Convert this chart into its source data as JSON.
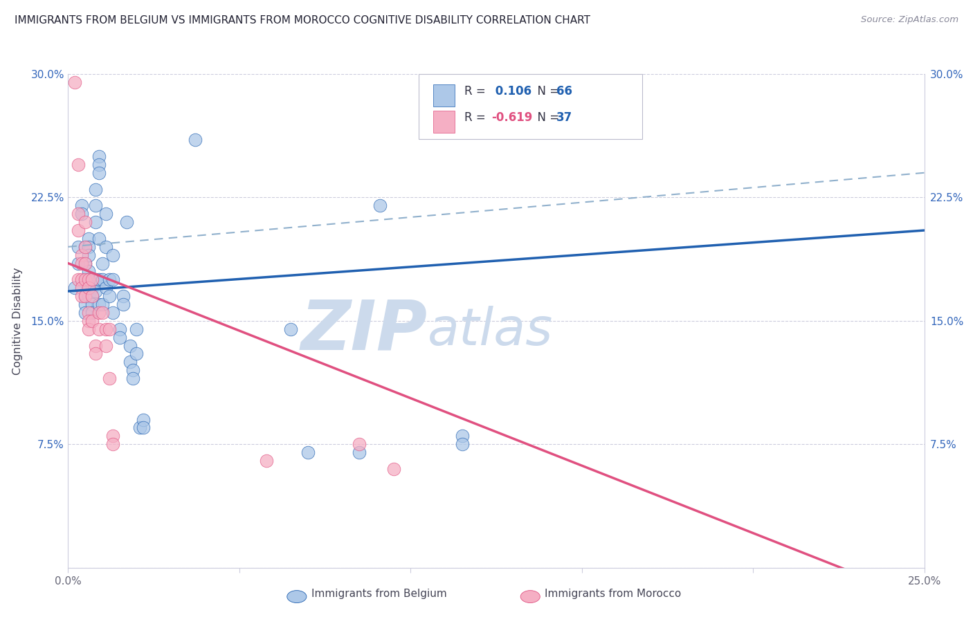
{
  "title": "IMMIGRANTS FROM BELGIUM VS IMMIGRANTS FROM MOROCCO COGNITIVE DISABILITY CORRELATION CHART",
  "source": "Source: ZipAtlas.com",
  "xlabel_Belgium": "Immigrants from Belgium",
  "xlabel_Morocco": "Immigrants from Morocco",
  "ylabel": "Cognitive Disability",
  "xlim": [
    0.0,
    0.25
  ],
  "ylim": [
    0.0,
    0.3
  ],
  "xticks": [
    0.0,
    0.05,
    0.1,
    0.15,
    0.2,
    0.25
  ],
  "yticks": [
    0.0,
    0.075,
    0.15,
    0.225,
    0.3
  ],
  "ytick_labels_left": [
    "",
    "7.5%",
    "15.0%",
    "22.5%",
    "30.0%"
  ],
  "ytick_labels_right": [
    "",
    "7.5%",
    "15.0%",
    "22.5%",
    "30.0%"
  ],
  "xtick_labels": [
    "0.0%",
    "",
    "",
    "",
    "",
    "25.0%"
  ],
  "R_belgium": 0.106,
  "N_belgium": 66,
  "R_morocco": -0.619,
  "N_morocco": 37,
  "color_belgium": "#adc8e8",
  "color_morocco": "#f5afc4",
  "line_color_belgium": "#2060b0",
  "line_color_morocco": "#e05080",
  "line_color_dashed": "#90b0cc",
  "watermark_color": "#ccdaec",
  "background_color": "#ffffff",
  "grid_color": "#ccccdd",
  "belgium_line": [
    0.0,
    0.168,
    0.25,
    0.205
  ],
  "morocco_line": [
    0.0,
    0.185,
    0.25,
    -0.02
  ],
  "dashed_line": [
    0.0,
    0.195,
    0.25,
    0.24
  ],
  "belgium_scatter": [
    [
      0.002,
      0.17
    ],
    [
      0.003,
      0.185
    ],
    [
      0.003,
      0.195
    ],
    [
      0.004,
      0.22
    ],
    [
      0.004,
      0.215
    ],
    [
      0.005,
      0.195
    ],
    [
      0.005,
      0.185
    ],
    [
      0.005,
      0.175
    ],
    [
      0.005,
      0.165
    ],
    [
      0.005,
      0.16
    ],
    [
      0.005,
      0.155
    ],
    [
      0.006,
      0.2
    ],
    [
      0.006,
      0.195
    ],
    [
      0.006,
      0.19
    ],
    [
      0.006,
      0.18
    ],
    [
      0.006,
      0.175
    ],
    [
      0.006,
      0.17
    ],
    [
      0.006,
      0.165
    ],
    [
      0.007,
      0.175
    ],
    [
      0.007,
      0.17
    ],
    [
      0.007,
      0.165
    ],
    [
      0.007,
      0.16
    ],
    [
      0.007,
      0.155
    ],
    [
      0.008,
      0.23
    ],
    [
      0.008,
      0.22
    ],
    [
      0.008,
      0.21
    ],
    [
      0.008,
      0.175
    ],
    [
      0.008,
      0.168
    ],
    [
      0.009,
      0.25
    ],
    [
      0.009,
      0.245
    ],
    [
      0.009,
      0.24
    ],
    [
      0.009,
      0.2
    ],
    [
      0.009,
      0.175
    ],
    [
      0.009,
      0.16
    ],
    [
      0.01,
      0.185
    ],
    [
      0.01,
      0.175
    ],
    [
      0.01,
      0.16
    ],
    [
      0.011,
      0.215
    ],
    [
      0.011,
      0.195
    ],
    [
      0.011,
      0.17
    ],
    [
      0.012,
      0.175
    ],
    [
      0.012,
      0.165
    ],
    [
      0.013,
      0.19
    ],
    [
      0.013,
      0.175
    ],
    [
      0.013,
      0.155
    ],
    [
      0.015,
      0.145
    ],
    [
      0.015,
      0.14
    ],
    [
      0.016,
      0.165
    ],
    [
      0.016,
      0.16
    ],
    [
      0.017,
      0.21
    ],
    [
      0.018,
      0.135
    ],
    [
      0.018,
      0.125
    ],
    [
      0.019,
      0.12
    ],
    [
      0.019,
      0.115
    ],
    [
      0.02,
      0.145
    ],
    [
      0.02,
      0.13
    ],
    [
      0.021,
      0.085
    ],
    [
      0.022,
      0.09
    ],
    [
      0.022,
      0.085
    ],
    [
      0.037,
      0.26
    ],
    [
      0.065,
      0.145
    ],
    [
      0.07,
      0.07
    ],
    [
      0.085,
      0.07
    ],
    [
      0.091,
      0.22
    ],
    [
      0.115,
      0.08
    ],
    [
      0.115,
      0.075
    ]
  ],
  "morocco_scatter": [
    [
      0.002,
      0.295
    ],
    [
      0.003,
      0.245
    ],
    [
      0.003,
      0.215
    ],
    [
      0.003,
      0.205
    ],
    [
      0.003,
      0.175
    ],
    [
      0.004,
      0.19
    ],
    [
      0.004,
      0.185
    ],
    [
      0.004,
      0.175
    ],
    [
      0.004,
      0.17
    ],
    [
      0.004,
      0.165
    ],
    [
      0.005,
      0.21
    ],
    [
      0.005,
      0.195
    ],
    [
      0.005,
      0.185
    ],
    [
      0.005,
      0.175
    ],
    [
      0.005,
      0.165
    ],
    [
      0.006,
      0.175
    ],
    [
      0.006,
      0.17
    ],
    [
      0.006,
      0.155
    ],
    [
      0.006,
      0.15
    ],
    [
      0.006,
      0.145
    ],
    [
      0.007,
      0.175
    ],
    [
      0.007,
      0.165
    ],
    [
      0.007,
      0.15
    ],
    [
      0.008,
      0.135
    ],
    [
      0.008,
      0.13
    ],
    [
      0.009,
      0.155
    ],
    [
      0.009,
      0.145
    ],
    [
      0.01,
      0.155
    ],
    [
      0.011,
      0.145
    ],
    [
      0.011,
      0.135
    ],
    [
      0.012,
      0.145
    ],
    [
      0.012,
      0.115
    ],
    [
      0.013,
      0.08
    ],
    [
      0.013,
      0.075
    ],
    [
      0.058,
      0.065
    ],
    [
      0.085,
      0.075
    ],
    [
      0.095,
      0.06
    ]
  ]
}
